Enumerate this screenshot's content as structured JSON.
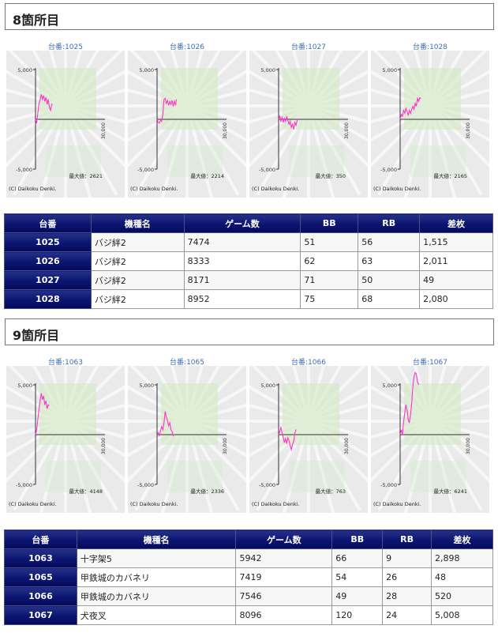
{
  "sections": [
    {
      "title": "8箇所目",
      "charts": [
        {
          "label": "台番:1025",
          "max_label": "最大値：2621",
          "copyright": "(C) Daikoku Denki.",
          "y_top": "5,000",
          "y_bottom": "-5,000",
          "x_end": "30,000",
          "data": [
            [
              0,
              0
            ],
            [
              500,
              -400
            ],
            [
              1000,
              600
            ],
            [
              1500,
              1600
            ],
            [
              2000,
              2000
            ],
            [
              2500,
              2500
            ],
            [
              3000,
              2000
            ],
            [
              3500,
              2400
            ],
            [
              4000,
              1800
            ],
            [
              4500,
              2200
            ],
            [
              5000,
              1500
            ],
            [
              5500,
              2000
            ],
            [
              6000,
              1200
            ],
            [
              6500,
              900
            ],
            [
              7000,
              1500
            ],
            [
              7474,
              1515
            ]
          ]
        },
        {
          "label": "台番:1026",
          "max_label": "最大値：2214",
          "copyright": "(C) Daikoku Denki.",
          "y_top": "5,000",
          "y_bottom": "-5,000",
          "x_end": "30,000",
          "data": [
            [
              0,
              0
            ],
            [
              500,
              -300
            ],
            [
              1000,
              -400
            ],
            [
              1500,
              -100
            ],
            [
              2000,
              -200
            ],
            [
              2500,
              500
            ],
            [
              3000,
              2000
            ],
            [
              3500,
              2100
            ],
            [
              4000,
              1600
            ],
            [
              4500,
              1900
            ],
            [
              5000,
              1400
            ],
            [
              5500,
              1800
            ],
            [
              6000,
              1500
            ],
            [
              6500,
              1900
            ],
            [
              7000,
              1300
            ],
            [
              7500,
              1800
            ],
            [
              8000,
              1400
            ],
            [
              8333,
              2011
            ]
          ]
        },
        {
          "label": "台番:1027",
          "max_label": "最大値：350",
          "copyright": "(C) Daikoku Denki.",
          "y_top": "5,000",
          "y_bottom": "-5,000",
          "x_end": "30,000",
          "data": [
            [
              0,
              0
            ],
            [
              500,
              300
            ],
            [
              1000,
              -200
            ],
            [
              1500,
              200
            ],
            [
              2000,
              -300
            ],
            [
              2500,
              100
            ],
            [
              3000,
              -200
            ],
            [
              3500,
              300
            ],
            [
              4000,
              -100
            ],
            [
              4500,
              -500
            ],
            [
              5000,
              -200
            ],
            [
              5500,
              -800
            ],
            [
              6000,
              -500
            ],
            [
              6500,
              -1000
            ],
            [
              7000,
              -300
            ],
            [
              7500,
              -600
            ],
            [
              8171,
              49
            ]
          ]
        },
        {
          "label": "台番:1028",
          "max_label": "最大値：2165",
          "copyright": "(C) Daikoku Denki.",
          "y_top": "5,000",
          "y_bottom": "-5,000",
          "x_end": "30,000",
          "data": [
            [
              0,
              0
            ],
            [
              500,
              500
            ],
            [
              1000,
              300
            ],
            [
              1500,
              900
            ],
            [
              2000,
              600
            ],
            [
              2500,
              1100
            ],
            [
              3000,
              800
            ],
            [
              3500,
              400
            ],
            [
              4000,
              900
            ],
            [
              4500,
              600
            ],
            [
              5000,
              1000
            ],
            [
              5500,
              1300
            ],
            [
              6000,
              1000
            ],
            [
              6500,
              1600
            ],
            [
              7000,
              1300
            ],
            [
              7500,
              2100
            ],
            [
              8000,
              1800
            ],
            [
              8500,
              2165
            ],
            [
              8952,
              2080
            ]
          ]
        }
      ],
      "table": {
        "headers": [
          "台番",
          "機種名",
          "ゲーム数",
          "BB",
          "RB",
          "差枚"
        ],
        "rows": [
          [
            "1025",
            "バジ絆2",
            "7474",
            "51",
            "56",
            "1,515"
          ],
          [
            "1026",
            "バジ絆2",
            "8333",
            "62",
            "63",
            "2,011"
          ],
          [
            "1027",
            "バジ絆2",
            "8171",
            "71",
            "50",
            "49"
          ],
          [
            "1028",
            "バジ絆2",
            "8952",
            "75",
            "68",
            "2,080"
          ]
        ]
      }
    },
    {
      "title": "9箇所目",
      "charts": [
        {
          "label": "台番:1063",
          "max_label": "最大値：4148",
          "copyright": "(C) Daikoku Denki.",
          "y_top": "5,000",
          "y_bottom": "-5,000",
          "x_end": "30,000",
          "data": [
            [
              0,
              0
            ],
            [
              500,
              500
            ],
            [
              1000,
              1500
            ],
            [
              1500,
              2500
            ],
            [
              2000,
              3500
            ],
            [
              2500,
              4148
            ],
            [
              3000,
              3500
            ],
            [
              3500,
              3900
            ],
            [
              4000,
              3000
            ],
            [
              4500,
              3400
            ],
            [
              5000,
              2600
            ],
            [
              5500,
              3000
            ],
            [
              5942,
              2898
            ]
          ]
        },
        {
          "label": "台番:1065",
          "max_label": "最大値：2336",
          "copyright": "(C) Daikoku Denki.",
          "y_top": "5,000",
          "y_bottom": "-5,000",
          "x_end": "30,000",
          "data": [
            [
              0,
              0
            ],
            [
              500,
              200
            ],
            [
              1000,
              -100
            ],
            [
              1500,
              400
            ],
            [
              2000,
              800
            ],
            [
              2500,
              500
            ],
            [
              3000,
              1200
            ],
            [
              3500,
              2336
            ],
            [
              4000,
              1800
            ],
            [
              4500,
              1400
            ],
            [
              5000,
              900
            ],
            [
              5500,
              1200
            ],
            [
              6000,
              500
            ],
            [
              6500,
              300
            ],
            [
              7000,
              -100
            ],
            [
              7419,
              48
            ]
          ]
        },
        {
          "label": "台番:1066",
          "max_label": "最大値：763",
          "copyright": "(C) Daikoku Denki.",
          "y_top": "5,000",
          "y_bottom": "-5,000",
          "x_end": "30,000",
          "data": [
            [
              0,
              0
            ],
            [
              500,
              300
            ],
            [
              1000,
              763
            ],
            [
              1500,
              200
            ],
            [
              2000,
              -300
            ],
            [
              2500,
              -800
            ],
            [
              3000,
              -400
            ],
            [
              3500,
              -900
            ],
            [
              4000,
              -300
            ],
            [
              4500,
              -600
            ],
            [
              5000,
              -1100
            ],
            [
              5500,
              -1500
            ],
            [
              6000,
              -1000
            ],
            [
              6500,
              -700
            ],
            [
              7000,
              100
            ],
            [
              7546,
              520
            ]
          ]
        },
        {
          "label": "台番:1067",
          "max_label": "最大値：6241",
          "copyright": "(C) Daikoku Denki.",
          "y_top": "5,000",
          "y_bottom": "-5,000",
          "x_end": "30,000",
          "data": [
            [
              0,
              0
            ],
            [
              500,
              500
            ],
            [
              1000,
              0
            ],
            [
              1500,
              1300
            ],
            [
              2000,
              2200
            ],
            [
              2500,
              3000
            ],
            [
              3000,
              2500
            ],
            [
              3500,
              1500
            ],
            [
              4000,
              1200
            ],
            [
              4500,
              2000
            ],
            [
              5000,
              3200
            ],
            [
              5500,
              4800
            ],
            [
              6000,
              5800
            ],
            [
              6500,
              6241
            ],
            [
              7000,
              6100
            ],
            [
              7500,
              5300
            ],
            [
              8096,
              5008
            ]
          ]
        }
      ],
      "table": {
        "headers": [
          "台番",
          "機種名",
          "ゲーム数",
          "BB",
          "RB",
          "差枚"
        ],
        "rows": [
          [
            "1063",
            "十字架5",
            "5942",
            "66",
            "9",
            "2,898"
          ],
          [
            "1065",
            "甲鉄城のカバネリ",
            "7419",
            "54",
            "26",
            "48"
          ],
          [
            "1066",
            "甲鉄城のカバネリ",
            "7546",
            "49",
            "28",
            "520"
          ],
          [
            "1067",
            "犬夜叉",
            "8096",
            "120",
            "24",
            "5,008"
          ]
        ]
      }
    }
  ],
  "chart_data": [
    {
      "type": "line",
      "title": "台番:1025",
      "x_range": [
        0,
        30000
      ],
      "ylim": [
        -5000,
        5000
      ],
      "grid": false,
      "series": [
        {
          "values": [
            [
              0,
              0
            ],
            [
              1500,
              1600
            ],
            [
              2500,
              2500
            ],
            [
              4000,
              1800
            ],
            [
              6500,
              900
            ],
            [
              7474,
              1515
            ]
          ]
        }
      ]
    },
    {
      "type": "line",
      "title": "台番:1026",
      "x_range": [
        0,
        30000
      ],
      "ylim": [
        -5000,
        5000
      ],
      "grid": false,
      "series": [
        {
          "values": [
            [
              0,
              0
            ],
            [
              1000,
              -400
            ],
            [
              3000,
              2000
            ],
            [
              6000,
              1500
            ],
            [
              8333,
              2011
            ]
          ]
        }
      ]
    },
    {
      "type": "line",
      "title": "台番:1027",
      "x_range": [
        0,
        30000
      ],
      "ylim": [
        -5000,
        5000
      ],
      "grid": false,
      "series": [
        {
          "values": [
            [
              0,
              0
            ],
            [
              3500,
              300
            ],
            [
              6500,
              -1000
            ],
            [
              8171,
              49
            ]
          ]
        }
      ]
    },
    {
      "type": "line",
      "title": "台番:1028",
      "x_range": [
        0,
        30000
      ],
      "ylim": [
        -5000,
        5000
      ],
      "grid": false,
      "series": [
        {
          "values": [
            [
              0,
              0
            ],
            [
              3500,
              400
            ],
            [
              8500,
              2165
            ],
            [
              8952,
              2080
            ]
          ]
        }
      ]
    },
    {
      "type": "line",
      "title": "台番:1063",
      "x_range": [
        0,
        30000
      ],
      "ylim": [
        -5000,
        5000
      ],
      "grid": false,
      "series": [
        {
          "values": [
            [
              0,
              0
            ],
            [
              2500,
              4148
            ],
            [
              5942,
              2898
            ]
          ]
        }
      ]
    },
    {
      "type": "line",
      "title": "台番:1065",
      "x_range": [
        0,
        30000
      ],
      "ylim": [
        -5000,
        5000
      ],
      "grid": false,
      "series": [
        {
          "values": [
            [
              0,
              0
            ],
            [
              3500,
              2336
            ],
            [
              7419,
              48
            ]
          ]
        }
      ]
    },
    {
      "type": "line",
      "title": "台番:1066",
      "x_range": [
        0,
        30000
      ],
      "ylim": [
        -5000,
        5000
      ],
      "grid": false,
      "series": [
        {
          "values": [
            [
              0,
              0
            ],
            [
              1000,
              763
            ],
            [
              5500,
              -1500
            ],
            [
              7546,
              520
            ]
          ]
        }
      ]
    },
    {
      "type": "line",
      "title": "台番:1067",
      "x_range": [
        0,
        30000
      ],
      "ylim": [
        -5000,
        5000
      ],
      "grid": false,
      "series": [
        {
          "values": [
            [
              0,
              0
            ],
            [
              6500,
              6241
            ],
            [
              8096,
              5008
            ]
          ]
        }
      ]
    }
  ],
  "colors": {
    "line": "#ff33cc",
    "table_header": "#0b1570",
    "chart_title": "#3b6fb0"
  }
}
